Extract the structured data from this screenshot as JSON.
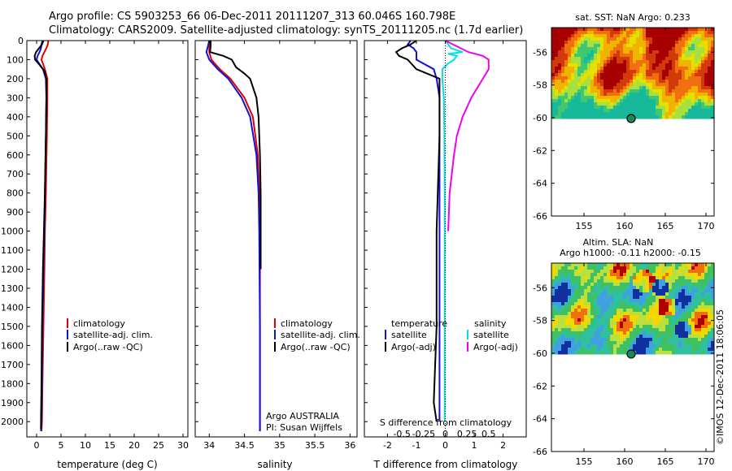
{
  "header": {
    "line1": "Argo profile: CS 5903253_66 06-Dec-2011 20111207_313 60.046S 160.798E",
    "line2": "Climatology: CARS2009. Satellite-adjusted climatology: synTS_20111205.nc (1.7d earlier)"
  },
  "credit": "©IMOS 12-Dec-2011 18:06:05",
  "colors": {
    "climatology": "#e00000",
    "satellite": "#1010e0",
    "argo": "#000000",
    "sat_salinity": "#00e0e8",
    "argo_salinity": "#f000f0"
  },
  "chart_data": [
    {
      "id": "temperature",
      "type": "line",
      "xlabel": "temperature (deg C)",
      "ylabel": "",
      "xlim": [
        -2,
        31
      ],
      "ylim": [
        2080,
        0
      ],
      "xticks": [
        0,
        5,
        10,
        15,
        20,
        25,
        30
      ],
      "yticks": [
        0,
        100,
        200,
        300,
        400,
        500,
        600,
        700,
        800,
        900,
        1000,
        1100,
        1200,
        1300,
        1400,
        1500,
        1600,
        1700,
        1800,
        1900,
        2000
      ],
      "legend": [
        "climatology",
        "satellite-adj. clim.",
        "Argo(..raw -QC)"
      ],
      "series": [
        {
          "name": "climatology",
          "color": "#e00000",
          "depth": [
            0,
            20,
            40,
            60,
            80,
            100,
            150,
            200,
            300,
            500,
            800,
            1000,
            1200,
            1500,
            1800,
            2000,
            2050
          ],
          "values": [
            2.4,
            2.3,
            2.0,
            1.6,
            1.2,
            1.0,
            1.7,
            2.2,
            2.2,
            2.1,
            1.9,
            1.7,
            1.6,
            1.4,
            1.2,
            1.1,
            1.0
          ]
        },
        {
          "name": "satellite-adj. clim.",
          "color": "#1010e0",
          "depth": [
            0,
            20,
            40,
            60,
            80,
            100,
            150,
            200,
            300,
            500,
            800,
            1000,
            1200,
            1500,
            1800,
            2000,
            2050
          ],
          "values": [
            1.2,
            1.0,
            0.9,
            0.6,
            0.2,
            0.0,
            1.3,
            1.9,
            2.0,
            1.9,
            1.7,
            1.6,
            1.4,
            1.2,
            1.1,
            1.0,
            0.9
          ]
        },
        {
          "name": "Argo(..raw -QC)",
          "color": "#000000",
          "depth": [
            0,
            20,
            40,
            60,
            80,
            100,
            130,
            160,
            200,
            300,
            500,
            800,
            1000,
            1200,
            1500,
            1800,
            2000,
            2040
          ],
          "values": [
            1.4,
            1.1,
            0.5,
            -0.1,
            -0.4,
            -0.3,
            0.7,
            1.6,
            2.0,
            2.0,
            1.9,
            1.7,
            1.5,
            1.3,
            1.1,
            1.0,
            0.9,
            0.9
          ]
        }
      ]
    },
    {
      "id": "salinity",
      "type": "line",
      "xlabel": "salinity",
      "ylabel": "",
      "xlim": [
        33.8,
        36.1
      ],
      "ylim": [
        2080,
        0
      ],
      "xticks": [
        34,
        34.5,
        35,
        35.5,
        36
      ],
      "legend": [
        "climatology",
        "satellite-adj. clim.",
        "Argo(..raw -QC)"
      ],
      "annotation": [
        "Argo AUSTRALIA",
        "PI: Susan Wijffels"
      ],
      "series": [
        {
          "name": "climatology",
          "color": "#e00000",
          "depth": [
            0,
            30,
            60,
            100,
            150,
            200,
            300,
            400,
            600,
            800,
            1000,
            1500,
            2000,
            2050
          ],
          "values": [
            34.02,
            34.0,
            34.0,
            34.03,
            34.15,
            34.3,
            34.5,
            34.62,
            34.69,
            34.71,
            34.72,
            34.72,
            34.72,
            34.72
          ]
        },
        {
          "name": "satellite-adj. clim.",
          "color": "#1010e0",
          "depth": [
            0,
            30,
            60,
            100,
            150,
            200,
            300,
            400,
            600,
            800,
            1000,
            1500,
            2000,
            2050
          ],
          "values": [
            34.0,
            33.98,
            33.96,
            34.0,
            34.12,
            34.27,
            34.46,
            34.58,
            34.67,
            34.7,
            34.71,
            34.72,
            34.72,
            34.72
          ]
        },
        {
          "name": "Argo(..raw -QC)",
          "color": "#000000",
          "depth": [
            0,
            30,
            60,
            80,
            100,
            140,
            170,
            200,
            300,
            400,
            600,
            800,
            1000,
            1200
          ],
          "values": [
            34.02,
            34.02,
            34.01,
            34.2,
            34.32,
            34.38,
            34.49,
            34.58,
            34.67,
            34.7,
            34.72,
            34.73,
            34.73,
            34.73
          ]
        }
      ]
    },
    {
      "id": "difference",
      "type": "line",
      "xlabel": "T difference from climatology",
      "xlabel2": "S difference from climatology",
      "xlim": [
        -2.8,
        2.8
      ],
      "ylim": [
        2080,
        0
      ],
      "xticks": [
        -2,
        -1,
        0,
        1,
        2
      ],
      "xticks2_labels": [
        "-0.5",
        "-0.25",
        "0",
        "0.25",
        "0.5"
      ],
      "legend_temperature": {
        "title": "temperature",
        "entries": [
          "satellite",
          "Argo(-adj)"
        ]
      },
      "legend_salinity": {
        "title": "salinity",
        "entries": [
          "satellite",
          "Argo(-adj)"
        ]
      },
      "series": [
        {
          "name": "temperature satellite",
          "color": "#1010e0",
          "depth": [
            0,
            20,
            40,
            60,
            80,
            100,
            150,
            200,
            300,
            500,
            1000,
            1500,
            2000
          ],
          "values": [
            -1.2,
            -1.3,
            -1.1,
            -1.0,
            -1.0,
            -1.0,
            -0.4,
            -0.3,
            -0.2,
            -0.2,
            -0.2,
            -0.2,
            -0.2
          ]
        },
        {
          "name": "temperature Argo(-adj)",
          "color": "#000000",
          "depth": [
            0,
            20,
            40,
            60,
            80,
            100,
            150,
            200,
            300,
            500,
            1000,
            1500,
            1900,
            2000
          ],
          "values": [
            -1.0,
            -1.2,
            -1.5,
            -1.7,
            -1.6,
            -1.3,
            -1.0,
            -0.2,
            -0.2,
            -0.2,
            -0.3,
            -0.3,
            -0.4,
            -0.3
          ]
        },
        {
          "name": "salinity satellite",
          "color": "#00e0e8",
          "depth": [
            0,
            40,
            60,
            70,
            80,
            100,
            120,
            150,
            200,
            300,
            500,
            800,
            1000,
            1500,
            2000
          ],
          "values": [
            0.0,
            0.2,
            0.6,
            0.1,
            0.4,
            0.3,
            0.1,
            -0.1,
            -0.1,
            -0.05,
            -0.03,
            -0.02,
            -0.02,
            -0.02,
            -0.02
          ]
        },
        {
          "name": "salinity Argo(-adj)",
          "color": "#f000f0",
          "depth": [
            0,
            60,
            80,
            100,
            150,
            200,
            300,
            400,
            500,
            600,
            800,
            1000
          ],
          "values": [
            0.0,
            0.8,
            1.3,
            1.5,
            1.5,
            1.3,
            0.9,
            0.6,
            0.4,
            0.3,
            0.15,
            0.1
          ]
        }
      ]
    },
    {
      "id": "sst-map",
      "type": "heatmap",
      "title": "sat. SST: NaN Argo: 0.233",
      "xticks": [
        155,
        160,
        165,
        170
      ],
      "yticks": [
        -56,
        -58,
        -60,
        -62,
        -64,
        -66
      ],
      "xlim": [
        151,
        171
      ],
      "ylim": [
        -66,
        -54.5
      ],
      "marker": {
        "lon": 160.8,
        "lat": -60.05
      }
    },
    {
      "id": "sla-map",
      "type": "heatmap",
      "title": "Altim. SLA: NaN",
      "subtitle": "Argo h1000: -0.11 h2000: -0.15",
      "xticks": [
        155,
        160,
        165,
        170
      ],
      "yticks": [
        -56,
        -58,
        -60,
        -62,
        -64,
        -66
      ],
      "xlim": [
        151,
        171
      ],
      "ylim": [
        -66,
        -54.5
      ],
      "marker": {
        "lon": 160.8,
        "lat": -60.05
      }
    }
  ]
}
